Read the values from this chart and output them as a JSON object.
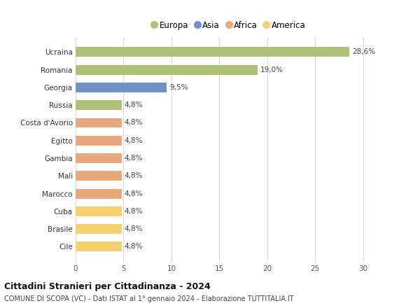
{
  "categories": [
    "Ucraina",
    "Romania",
    "Georgia",
    "Russia",
    "Costa d'Avorio",
    "Egitto",
    "Gambia",
    "Mali",
    "Marocco",
    "Cuba",
    "Brasile",
    "Cile"
  ],
  "values": [
    28.6,
    19.0,
    9.5,
    4.8,
    4.8,
    4.8,
    4.8,
    4.8,
    4.8,
    4.8,
    4.8,
    4.8
  ],
  "labels": [
    "28,6%",
    "19,0%",
    "9,5%",
    "4,8%",
    "4,8%",
    "4,8%",
    "4,8%",
    "4,8%",
    "4,8%",
    "4,8%",
    "4,8%",
    "4,8%"
  ],
  "colors": [
    "#adc178",
    "#adc178",
    "#7090c8",
    "#adc178",
    "#e8a87c",
    "#e8a87c",
    "#e8a87c",
    "#e8a87c",
    "#e8a87c",
    "#f5d06e",
    "#f5d06e",
    "#f5d06e"
  ],
  "legend": [
    {
      "label": "Europa",
      "color": "#adc178"
    },
    {
      "label": "Asia",
      "color": "#7090c8"
    },
    {
      "label": "Africa",
      "color": "#e8a87c"
    },
    {
      "label": "America",
      "color": "#f5d06e"
    }
  ],
  "xlim": [
    0,
    32
  ],
  "xticks": [
    0,
    5,
    10,
    15,
    20,
    25,
    30
  ],
  "title": "Cittadini Stranieri per Cittadinanza - 2024",
  "subtitle": "COMUNE DI SCOPA (VC) - Dati ISTAT al 1° gennaio 2024 - Elaborazione TUTTITALIA.IT",
  "background_color": "#ffffff",
  "grid_color": "#d8d8d8",
  "bar_height": 0.55
}
